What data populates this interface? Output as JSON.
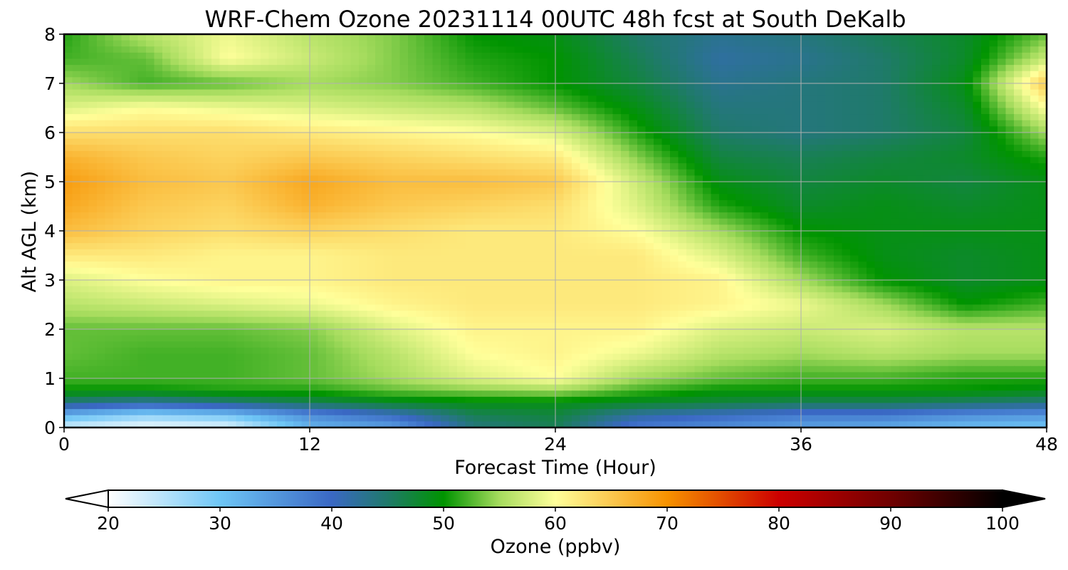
{
  "chart_data": {
    "type": "heatmap",
    "title": "WRF-Chem Ozone  20231114 00UTC 48h fcst at South DeKalb",
    "xlabel": "Forecast Time (Hour)",
    "ylabel": "Alt AGL (km)",
    "xlim": [
      0,
      48
    ],
    "ylim": [
      0,
      8
    ],
    "x_ticks": [
      "0",
      "12",
      "24",
      "36",
      "48"
    ],
    "y_ticks": [
      "0",
      "1",
      "2",
      "3",
      "4",
      "5",
      "6",
      "7",
      "8"
    ],
    "grid": true,
    "colorbar": {
      "label": "Ozone  (ppbv)",
      "vmin": 20,
      "vmax": 100,
      "ticks": [
        "20",
        "30",
        "40",
        "50",
        "60",
        "70",
        "80",
        "90",
        "100"
      ],
      "extend": "both",
      "stops": [
        {
          "v": 20,
          "c": "#ffffff"
        },
        {
          "v": 30,
          "c": "#6ec6f6"
        },
        {
          "v": 40,
          "c": "#3a68c4"
        },
        {
          "v": 45,
          "c": "#1f7a6a"
        },
        {
          "v": 50,
          "c": "#009400"
        },
        {
          "v": 55,
          "c": "#a6dc5e"
        },
        {
          "v": 60,
          "c": "#ffff9a"
        },
        {
          "v": 65,
          "c": "#fbc84f"
        },
        {
          "v": 70,
          "c": "#f79200"
        },
        {
          "v": 80,
          "c": "#cc0000"
        },
        {
          "v": 90,
          "c": "#700000"
        },
        {
          "v": 100,
          "c": "#000000"
        }
      ]
    },
    "time_hours": [
      0,
      4,
      8,
      12,
      16,
      20,
      24,
      28,
      32,
      36,
      40,
      44,
      48
    ],
    "altitude_km": [
      0,
      0.25,
      0.5,
      0.75,
      1,
      1.5,
      2,
      2.5,
      3,
      3.5,
      4,
      4.5,
      5,
      5.5,
      6,
      6.5,
      7,
      7.5,
      8
    ],
    "ozone_ppbv": [
      [
        23,
        21,
        22,
        32,
        34,
        44,
        46,
        38,
        36,
        34,
        33,
        31,
        30
      ],
      [
        32,
        28,
        30,
        36,
        40,
        46,
        47,
        42,
        40,
        38,
        38,
        36,
        35
      ],
      [
        44,
        42,
        44,
        46,
        48,
        49,
        49,
        48,
        47,
        46,
        46,
        45,
        44
      ],
      [
        50,
        50,
        51,
        51,
        53,
        54,
        55,
        52,
        50,
        50,
        50,
        50,
        49
      ],
      [
        52,
        52,
        52,
        53,
        55,
        58,
        60,
        55,
        53,
        52,
        52,
        51,
        51
      ],
      [
        53,
        52,
        52,
        53,
        56,
        60,
        61,
        59,
        56,
        55,
        56,
        55,
        55
      ],
      [
        53,
        53,
        53,
        54,
        58,
        61,
        61,
        61,
        58,
        57,
        58,
        56,
        56
      ],
      [
        56,
        57,
        58,
        59,
        61,
        62,
        62,
        62,
        61,
        59,
        55,
        50,
        52
      ],
      [
        58,
        60,
        61,
        61,
        62,
        62,
        62,
        62,
        61,
        55,
        50,
        48,
        49
      ],
      [
        62,
        62,
        61,
        61,
        62,
        62,
        62,
        62,
        58,
        52,
        49,
        48,
        49
      ],
      [
        66,
        64,
        63,
        64,
        63,
        62,
        62,
        60,
        55,
        50,
        49,
        49,
        49
      ],
      [
        68,
        65,
        64,
        67,
        65,
        64,
        63,
        58,
        51,
        48,
        49,
        48,
        49
      ],
      [
        69,
        66,
        65,
        68,
        66,
        66,
        65,
        57,
        49,
        47,
        48,
        47,
        49
      ],
      [
        67,
        65,
        64,
        65,
        64,
        63,
        62,
        54,
        47,
        46,
        47,
        48,
        51
      ],
      [
        63,
        63,
        63,
        62,
        61,
        60,
        58,
        51,
        45,
        44,
        45,
        47,
        55
      ],
      [
        58,
        60,
        59,
        58,
        57,
        56,
        53,
        49,
        44,
        44,
        45,
        48,
        60
      ],
      [
        55,
        52,
        53,
        55,
        54,
        52,
        50,
        47,
        43,
        44,
        45,
        49,
        65
      ],
      [
        52,
        53,
        60,
        57,
        54,
        51,
        50,
        46,
        42,
        43,
        45,
        48,
        57
      ],
      [
        51,
        56,
        59,
        56,
        54,
        50,
        49,
        45,
        43,
        44,
        46,
        48,
        53
      ]
    ]
  }
}
